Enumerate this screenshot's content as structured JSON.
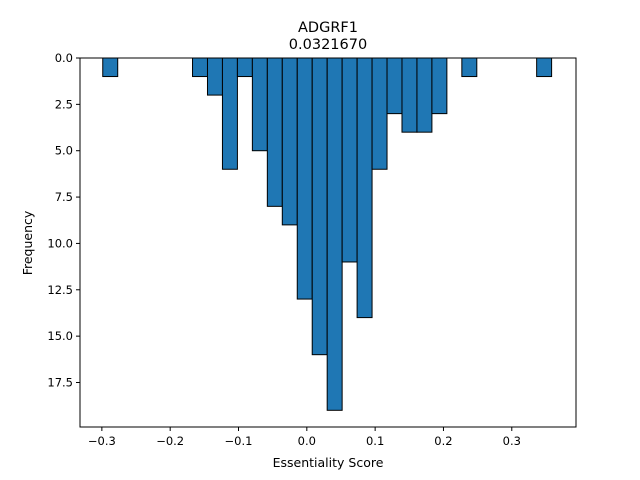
{
  "chart_data": {
    "type": "bar",
    "title": "ADGRF1",
    "subtitle": "0.0321670",
    "xlabel": "Essentiality Score",
    "ylabel": "Frequency",
    "xlim": [
      -0.332,
      0.394
    ],
    "ylim": [
      19.9,
      0.0
    ],
    "y_axis_inverted": true,
    "grid": false,
    "bar_color": "#1f77b4",
    "edge_color": "#000000",
    "x_ticks": [
      {
        "value": -0.3,
        "label": "−0.3"
      },
      {
        "value": -0.2,
        "label": "−0.2"
      },
      {
        "value": -0.1,
        "label": "−0.1"
      },
      {
        "value": 0.0,
        "label": "0.0"
      },
      {
        "value": 0.1,
        "label": "0.1"
      },
      {
        "value": 0.2,
        "label": "0.2"
      },
      {
        "value": 0.3,
        "label": "0.3"
      }
    ],
    "y_ticks": [
      {
        "value": 0.0,
        "label": "0.0"
      },
      {
        "value": 2.5,
        "label": "2.5"
      },
      {
        "value": 5.0,
        "label": "5.0"
      },
      {
        "value": 7.5,
        "label": "7.5"
      },
      {
        "value": 10.0,
        "label": "10.0"
      },
      {
        "value": 12.5,
        "label": "12.5"
      },
      {
        "value": 15.0,
        "label": "15.0"
      },
      {
        "value": 17.5,
        "label": "17.5"
      }
    ],
    "bins": [
      {
        "x0": -0.2987,
        "x1": -0.2768,
        "count": 1
      },
      {
        "x0": -0.1673,
        "x1": -0.1454,
        "count": 1
      },
      {
        "x0": -0.1454,
        "x1": -0.1235,
        "count": 2
      },
      {
        "x0": -0.1235,
        "x1": -0.1016,
        "count": 6
      },
      {
        "x0": -0.1016,
        "x1": -0.0797,
        "count": 1
      },
      {
        "x0": -0.0797,
        "x1": -0.0578,
        "count": 5
      },
      {
        "x0": -0.0578,
        "x1": -0.0359,
        "count": 8
      },
      {
        "x0": -0.0359,
        "x1": -0.014,
        "count": 9
      },
      {
        "x0": -0.014,
        "x1": 0.0079,
        "count": 13
      },
      {
        "x0": 0.0079,
        "x1": 0.0298,
        "count": 16
      },
      {
        "x0": 0.0298,
        "x1": 0.0517,
        "count": 19
      },
      {
        "x0": 0.0517,
        "x1": 0.0736,
        "count": 11
      },
      {
        "x0": 0.0736,
        "x1": 0.0955,
        "count": 14
      },
      {
        "x0": 0.0955,
        "x1": 0.1174,
        "count": 6
      },
      {
        "x0": 0.1174,
        "x1": 0.1393,
        "count": 3
      },
      {
        "x0": 0.1393,
        "x1": 0.1612,
        "count": 4
      },
      {
        "x0": 0.1612,
        "x1": 0.1831,
        "count": 4
      },
      {
        "x0": 0.1831,
        "x1": 0.205,
        "count": 3
      },
      {
        "x0": 0.2269,
        "x1": 0.2488,
        "count": 1
      },
      {
        "x0": 0.3364,
        "x1": 0.3583,
        "count": 1
      }
    ]
  }
}
